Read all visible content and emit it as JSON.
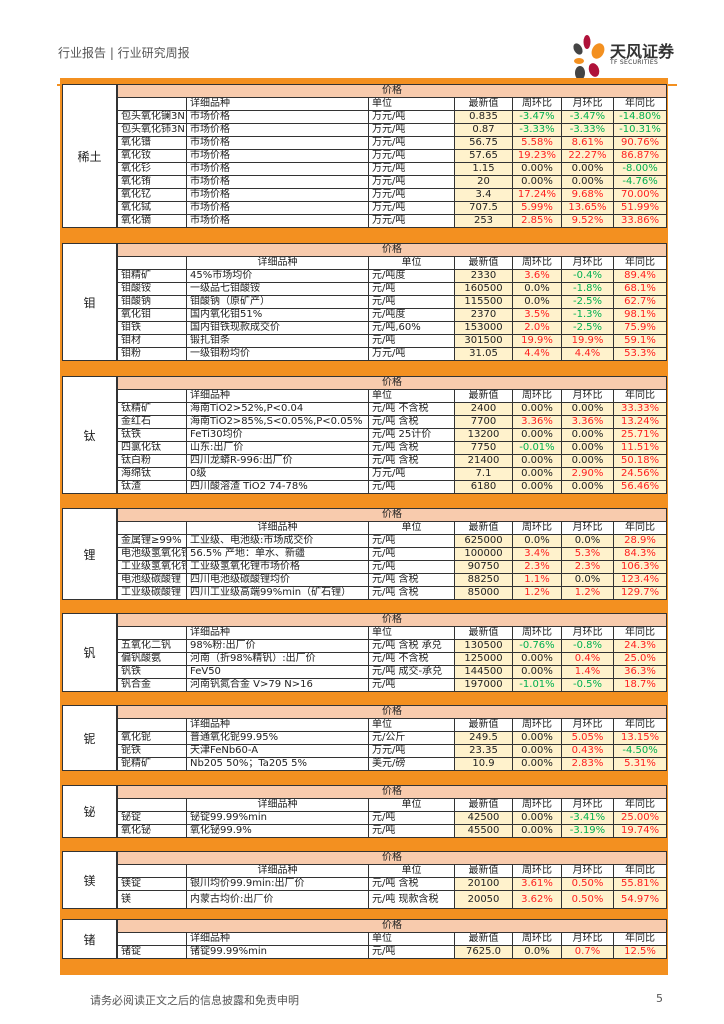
{
  "header": {
    "breadcrumb": "行业报告 | 行业研究周报",
    "logo_text": "天风证券",
    "logo_sub": "TF SECURITIES"
  },
  "colors": {
    "accent": "#f39020",
    "title_bg": "#f8cbad",
    "value_bg": "#fff2cc",
    "up": "#ff2020",
    "down": "#00b050"
  },
  "columns": [
    "详细品种",
    "单位",
    "最新值",
    "周环比",
    "月环比",
    "年同比"
  ],
  "group_title": "价格",
  "sections": [
    {
      "label": "稀土",
      "header_center": false,
      "rows": [
        [
          "包头氧化镧3N",
          "市场价格",
          "万元/吨",
          "0.835",
          "-3.47%",
          "-3.47%",
          "-14.80%"
        ],
        [
          "包头氧化铈3N",
          "市场价格",
          "万元/吨",
          "0.87",
          "-3.33%",
          "-3.33%",
          "-10.31%"
        ],
        [
          "氧化镨",
          "市场价格",
          "万元/吨",
          "56.75",
          "5.58%",
          "8.61%",
          "90.76%"
        ],
        [
          "氧化钕",
          "市场价格",
          "万元/吨",
          "57.65",
          "19.23%",
          "22.27%",
          "86.87%"
        ],
        [
          "氧化钐",
          "市场价格",
          "万元/吨",
          "1.15",
          "0.00%",
          "0.00%",
          "-8.00%"
        ],
        [
          "氧化铕",
          "市场价格",
          "万元/吨",
          "20",
          "0.00%",
          "0.00%",
          "-4.76%"
        ],
        [
          "氧化钇",
          "市场价格",
          "万元/吨",
          "3.4",
          "17.24%",
          "9.68%",
          "70.00%"
        ],
        [
          "氧化铽",
          "市场价格",
          "万元/吨",
          "707.5",
          "5.99%",
          "13.65%",
          "51.99%"
        ],
        [
          "氧化镝",
          "市场价格",
          "万元/吨",
          "253",
          "2.85%",
          "9.52%",
          "33.86%"
        ]
      ]
    },
    {
      "label": "钼",
      "header_center": true,
      "rows": [
        [
          "钼精矿",
          "45%市场均价",
          "元/吨度",
          "2330",
          "3.6%",
          "-0.4%",
          "89.4%"
        ],
        [
          "钼酸铵",
          "一级品七钼酸铵",
          "元/吨",
          "160500",
          "0.0%",
          "-1.8%",
          "68.1%"
        ],
        [
          "钼酸钠",
          "钼酸钠（原矿产）",
          "元/吨",
          "115500",
          "0.0%",
          "-2.5%",
          "62.7%"
        ],
        [
          "氧化钼",
          "国内氧化钼51%",
          "元/吨度",
          "2370",
          "3.5%",
          "-1.3%",
          "98.1%"
        ],
        [
          "钼铁",
          "国内钼铁现款成交价",
          "元/吨,60%",
          "153000",
          "2.0%",
          "-2.5%",
          "75.9%"
        ],
        [
          "钼材",
          "锻扎钼条",
          "元/吨",
          "301500",
          "19.9%",
          "19.9%",
          "59.1%"
        ],
        [
          "钼粉",
          "一级钼粉均价",
          "万元/吨",
          "31.05",
          "4.4%",
          "4.4%",
          "53.3%"
        ]
      ]
    },
    {
      "label": "钛",
      "header_center": false,
      "rows": [
        [
          "钛精矿",
          "海南TiO2>52%,P<0.04",
          "元/吨 不含税",
          "2400",
          "0.00%",
          "0.00%",
          "33.33%"
        ],
        [
          "金红石",
          "海南TiO2>85%,S<0.05%,P<0.05%",
          "元/吨 含税",
          "7700",
          "3.36%",
          "3.36%",
          "13.24%"
        ],
        [
          "钛铁",
          "FeTi30均价",
          "元/吨 25计价",
          "13200",
          "0.00%",
          "0.00%",
          "25.71%"
        ],
        [
          "四氯化钛",
          "山东:出厂价",
          "元/吨 含税",
          "7750",
          "-0.01%",
          "0.00%",
          "11.51%"
        ],
        [
          "钛白粉",
          "四川龙蟒R-996:出厂价",
          "元/吨 含税",
          "21400",
          "0.00%",
          "0.00%",
          "50.18%"
        ],
        [
          "海绵钛",
          "0级",
          "万元/吨",
          "7.1",
          "0.00%",
          "2.90%",
          "24.56%"
        ],
        [
          "钛渣",
          "四川酸溶渣 TiO2 74-78%",
          "元/吨",
          "6180",
          "0.00%",
          "0.00%",
          "56.46%"
        ]
      ]
    },
    {
      "label": "锂",
      "header_center": true,
      "rows": [
        [
          "金属锂≥99%",
          "工业级、电池级:市场成交价",
          "元/吨",
          "625000",
          "0.0%",
          "0.0%",
          "28.9%"
        ],
        [
          "电池级氢氧化锂",
          "56.5% 产地：单水、新疆",
          "元/吨",
          "100000",
          "3.4%",
          "5.3%",
          "84.3%"
        ],
        [
          "工业级氢氧化锂",
          "工业级氢氧化锂市场价格",
          "元/吨",
          "90750",
          "2.3%",
          "2.3%",
          "106.3%"
        ],
        [
          "电池级碳酸锂",
          "四川电池级碳酸锂均价",
          "元/吨 含税",
          "88250",
          "1.1%",
          "0.0%",
          "123.4%"
        ],
        [
          "工业级碳酸锂",
          "四川工业级高端99%min（矿石锂）",
          "元/吨 含税",
          "85000",
          "1.2%",
          "1.2%",
          "129.7%"
        ]
      ]
    },
    {
      "label": "钒",
      "header_center": false,
      "rows": [
        [
          "五氧化二钒",
          "98%粉:出厂价",
          "元/吨 含税 承兑",
          "130500",
          "-0.76%",
          "-0.8%",
          "24.3%"
        ],
        [
          "偏钒酸氨",
          "河南（折98%精钒）:出厂价",
          "元/吨 不含税",
          "125000",
          "0.00%",
          "0.4%",
          "25.0%"
        ],
        [
          "钒铁",
          "FeV50",
          "元/吨 成交-承兑",
          "144500",
          "0.00%",
          "1.4%",
          "36.3%"
        ],
        [
          "钒合金",
          "河南钒氮合金 V>79 N>16",
          "元/吨",
          "197000",
          "-1.01%",
          "-0.5%",
          "18.7%"
        ]
      ]
    },
    {
      "label": "铌",
      "header_center": false,
      "rows": [
        [
          "氧化铌",
          "普通氧化铌99.95%",
          "元/公斤",
          "249.5",
          "0.00%",
          "5.05%",
          "13.15%"
        ],
        [
          "铌铁",
          "天津FeNb60-A",
          "万元/吨",
          "23.35",
          "0.00%",
          "0.43%",
          "-4.50%"
        ],
        [
          "铌精矿",
          "Nb205 50%；Ta205 5%",
          "美元/磅",
          "10.9",
          "0.00%",
          "2.83%",
          "5.31%"
        ]
      ]
    },
    {
      "label": "铋",
      "header_center": true,
      "rows": [
        [
          "铋锭",
          "铋锭99.99%min",
          "元/吨",
          "42500",
          "0.00%",
          "-3.41%",
          "25.00%"
        ],
        [
          "氧化铋",
          "氧化铋99.9%",
          "元/吨",
          "45500",
          "0.00%",
          "-3.19%",
          "19.74%"
        ]
      ]
    },
    {
      "label": "镁",
      "header_center": true,
      "rows": [
        [
          "镁锭",
          "银川均价99.9min:出厂价",
          "元/吨 含税",
          "20100",
          "3.61%",
          "0.50%",
          "55.81%"
        ],
        [
          "镁",
          "内蒙古均价:出厂价",
          "元/吨 现款含税",
          "20050",
          "3.62%",
          "0.50%",
          "54.97%"
        ]
      ]
    },
    {
      "label": "锗",
      "header_center": false,
      "rows": [
        [
          "锗锭",
          "锗锭99.99%min",
          "元/吨",
          "7625.0",
          "0.0%",
          "0.7%",
          "12.5%"
        ]
      ]
    }
  ],
  "footer": {
    "disclaimer": "请务必阅读正文之后的信息披露和免责申明",
    "page": "5"
  }
}
